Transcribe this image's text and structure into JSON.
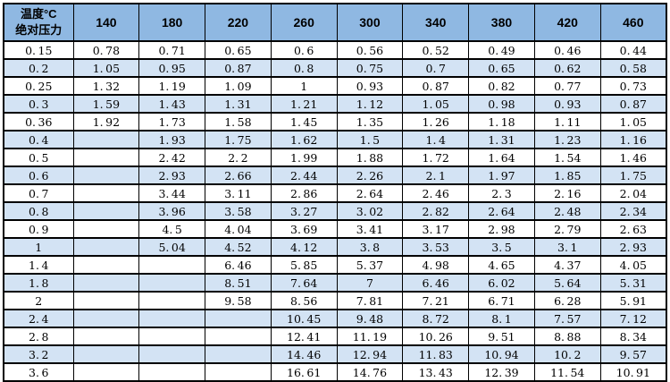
{
  "colors": {
    "header_bg": "#8fb8e2",
    "stripe_bg": "#d3e3f4",
    "border": "#000000"
  },
  "chart_data": {
    "type": "table",
    "corner": {
      "line1": "温度°C",
      "line2": "绝对压力"
    },
    "corner_meaning": "columns are temperature in °C, rows are absolute pressure",
    "columns": [
      "140",
      "180",
      "220",
      "260",
      "300",
      "340",
      "380",
      "420",
      "460"
    ],
    "rows": [
      {
        "pressure": "0.15",
        "values": [
          "0.78",
          "0.71",
          "0.65",
          "0.6",
          "0.56",
          "0.52",
          "0.49",
          "0.46",
          "0.44"
        ]
      },
      {
        "pressure": "0.2",
        "values": [
          "1.05",
          "0.95",
          "0.87",
          "0.8",
          "0.75",
          "0.7",
          "0.65",
          "0.62",
          "0.58"
        ]
      },
      {
        "pressure": "0.25",
        "values": [
          "1.32",
          "1.19",
          "1.09",
          "1",
          "0.93",
          "0.87",
          "0.82",
          "0.77",
          "0.73"
        ]
      },
      {
        "pressure": "0.3",
        "values": [
          "1.59",
          "1.43",
          "1.31",
          "1.21",
          "1.12",
          "1.05",
          "0.98",
          "0.93",
          "0.87"
        ]
      },
      {
        "pressure": "0.36",
        "values": [
          "1.92",
          "1.73",
          "1.58",
          "1.45",
          "1.35",
          "1.26",
          "1.18",
          "1.11",
          "1.05"
        ]
      },
      {
        "pressure": "0.4",
        "values": [
          "",
          "1.93",
          "1.75",
          "1.62",
          "1.5",
          "1.4",
          "1.31",
          "1.23",
          "1.16"
        ]
      },
      {
        "pressure": "0.5",
        "values": [
          "",
          "2.42",
          "2.2",
          "1.99",
          "1.88",
          "1.72",
          "1.64",
          "1.54",
          "1.46"
        ]
      },
      {
        "pressure": "0.6",
        "values": [
          "",
          "2.93",
          "2.66",
          "2.44",
          "2.26",
          "2.1",
          "1.97",
          "1.85",
          "1.75"
        ]
      },
      {
        "pressure": "0.7",
        "values": [
          "",
          "3.44",
          "3.11",
          "2.86",
          "2.64",
          "2.46",
          "2.3",
          "2.16",
          "2.04"
        ]
      },
      {
        "pressure": "0.8",
        "values": [
          "",
          "3.96",
          "3.58",
          "3.27",
          "3.02",
          "2.82",
          "2.64",
          "2.48",
          "2.34"
        ]
      },
      {
        "pressure": "0.9",
        "values": [
          "",
          "4.5",
          "4.04",
          "3.69",
          "3.41",
          "3.17",
          "2.98",
          "2.79",
          "2.63"
        ]
      },
      {
        "pressure": "1",
        "values": [
          "",
          "5.04",
          "4.52",
          "4.12",
          "3.8",
          "3.53",
          "3.5",
          "3.1",
          "2.93"
        ]
      },
      {
        "pressure": "1.4",
        "values": [
          "",
          "",
          "6.46",
          "5.85",
          "5.37",
          "4.98",
          "4.65",
          "4.37",
          "4.05"
        ]
      },
      {
        "pressure": "1.8",
        "values": [
          "",
          "",
          "8.51",
          "7.64",
          "7",
          "6.46",
          "6.02",
          "5.64",
          "5.31"
        ]
      },
      {
        "pressure": "2",
        "values": [
          "",
          "",
          "9.58",
          "8.56",
          "7.81",
          "7.21",
          "6.71",
          "6.28",
          "5.91"
        ]
      },
      {
        "pressure": "2.4",
        "values": [
          "",
          "",
          "",
          "10.45",
          "9.48",
          "8.72",
          "8.1",
          "7.57",
          "7.12"
        ]
      },
      {
        "pressure": "2.8",
        "values": [
          "",
          "",
          "",
          "12.41",
          "11.19",
          "10.26",
          "9.51",
          "8.88",
          "8.34"
        ]
      },
      {
        "pressure": "3.2",
        "values": [
          "",
          "",
          "",
          "14.46",
          "12.94",
          "11.83",
          "10.94",
          "10.2",
          "9.57"
        ]
      },
      {
        "pressure": "3.6",
        "values": [
          "",
          "",
          "",
          "16.61",
          "14.76",
          "13.43",
          "12.39",
          "11.54",
          "10.91"
        ]
      }
    ]
  }
}
